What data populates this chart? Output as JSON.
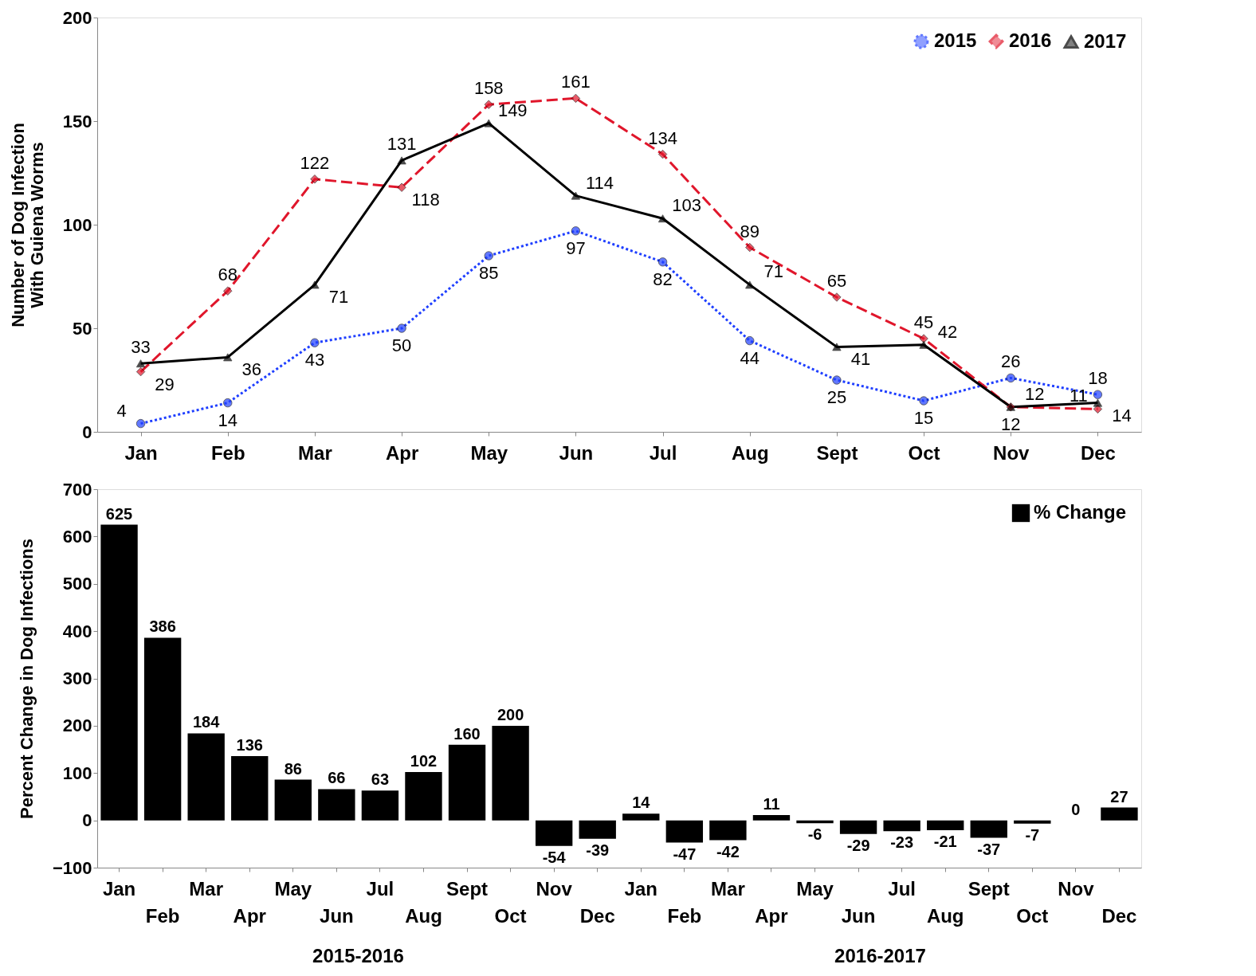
{
  "chart_data": [
    {
      "type": "line",
      "ylabel": "Number of Dog Infection\nWith Guiena Worms",
      "categories": [
        "Jan",
        "Feb",
        "Mar",
        "Apr",
        "May",
        "Jun",
        "Jul",
        "Aug",
        "Sept",
        "Oct",
        "Nov",
        "Dec"
      ],
      "ylim": [
        0,
        200
      ],
      "yticks": [
        0,
        50,
        100,
        150,
        200
      ],
      "grid": false,
      "legend": "top right",
      "data_labels": true,
      "series": [
        {
          "name": "2015",
          "color": "#1f3fff",
          "line_style": "dotted",
          "marker": "circle",
          "values": [
            4,
            14,
            43,
            50,
            85,
            97,
            82,
            44,
            25,
            15,
            26,
            18
          ]
        },
        {
          "name": "2016",
          "color": "#e0162b",
          "line_style": "dashed",
          "marker": "diamond",
          "values": [
            29,
            68,
            122,
            118,
            158,
            161,
            134,
            89,
            65,
            45,
            12,
            11
          ]
        },
        {
          "name": "2017",
          "color": "#000000",
          "line_style": "solid",
          "marker": "triangle",
          "values": [
            33,
            36,
            71,
            131,
            149,
            114,
            103,
            71,
            41,
            42,
            12,
            14
          ]
        }
      ]
    },
    {
      "type": "bar",
      "ylabel": "Percent Change in Dog Infections",
      "categories": [
        "Jan",
        "Feb",
        "Mar",
        "Apr",
        "May",
        "Jun",
        "Jul",
        "Aug",
        "Sept",
        "Oct",
        "Nov",
        "Dec",
        "Jan",
        "Feb",
        "Mar",
        "Apr",
        "May",
        "Jun",
        "Jul",
        "Aug",
        "Sept",
        "Oct",
        "Nov",
        "Dec"
      ],
      "ylim": [
        -100,
        700
      ],
      "yticks": [
        -100,
        0,
        100,
        200,
        300,
        400,
        500,
        600,
        700
      ],
      "grid": false,
      "legend": "top right",
      "data_labels": true,
      "series": [
        {
          "name": "% Change",
          "color": "#000000",
          "values": [
            625,
            386,
            184,
            136,
            86,
            66,
            63,
            102,
            160,
            200,
            -54,
            -39,
            14,
            -47,
            -42,
            11,
            -6,
            -29,
            -23,
            -21,
            -37,
            -7,
            0,
            27
          ]
        }
      ],
      "annotations": [
        "2015-2016",
        "2016-2017"
      ]
    }
  ]
}
